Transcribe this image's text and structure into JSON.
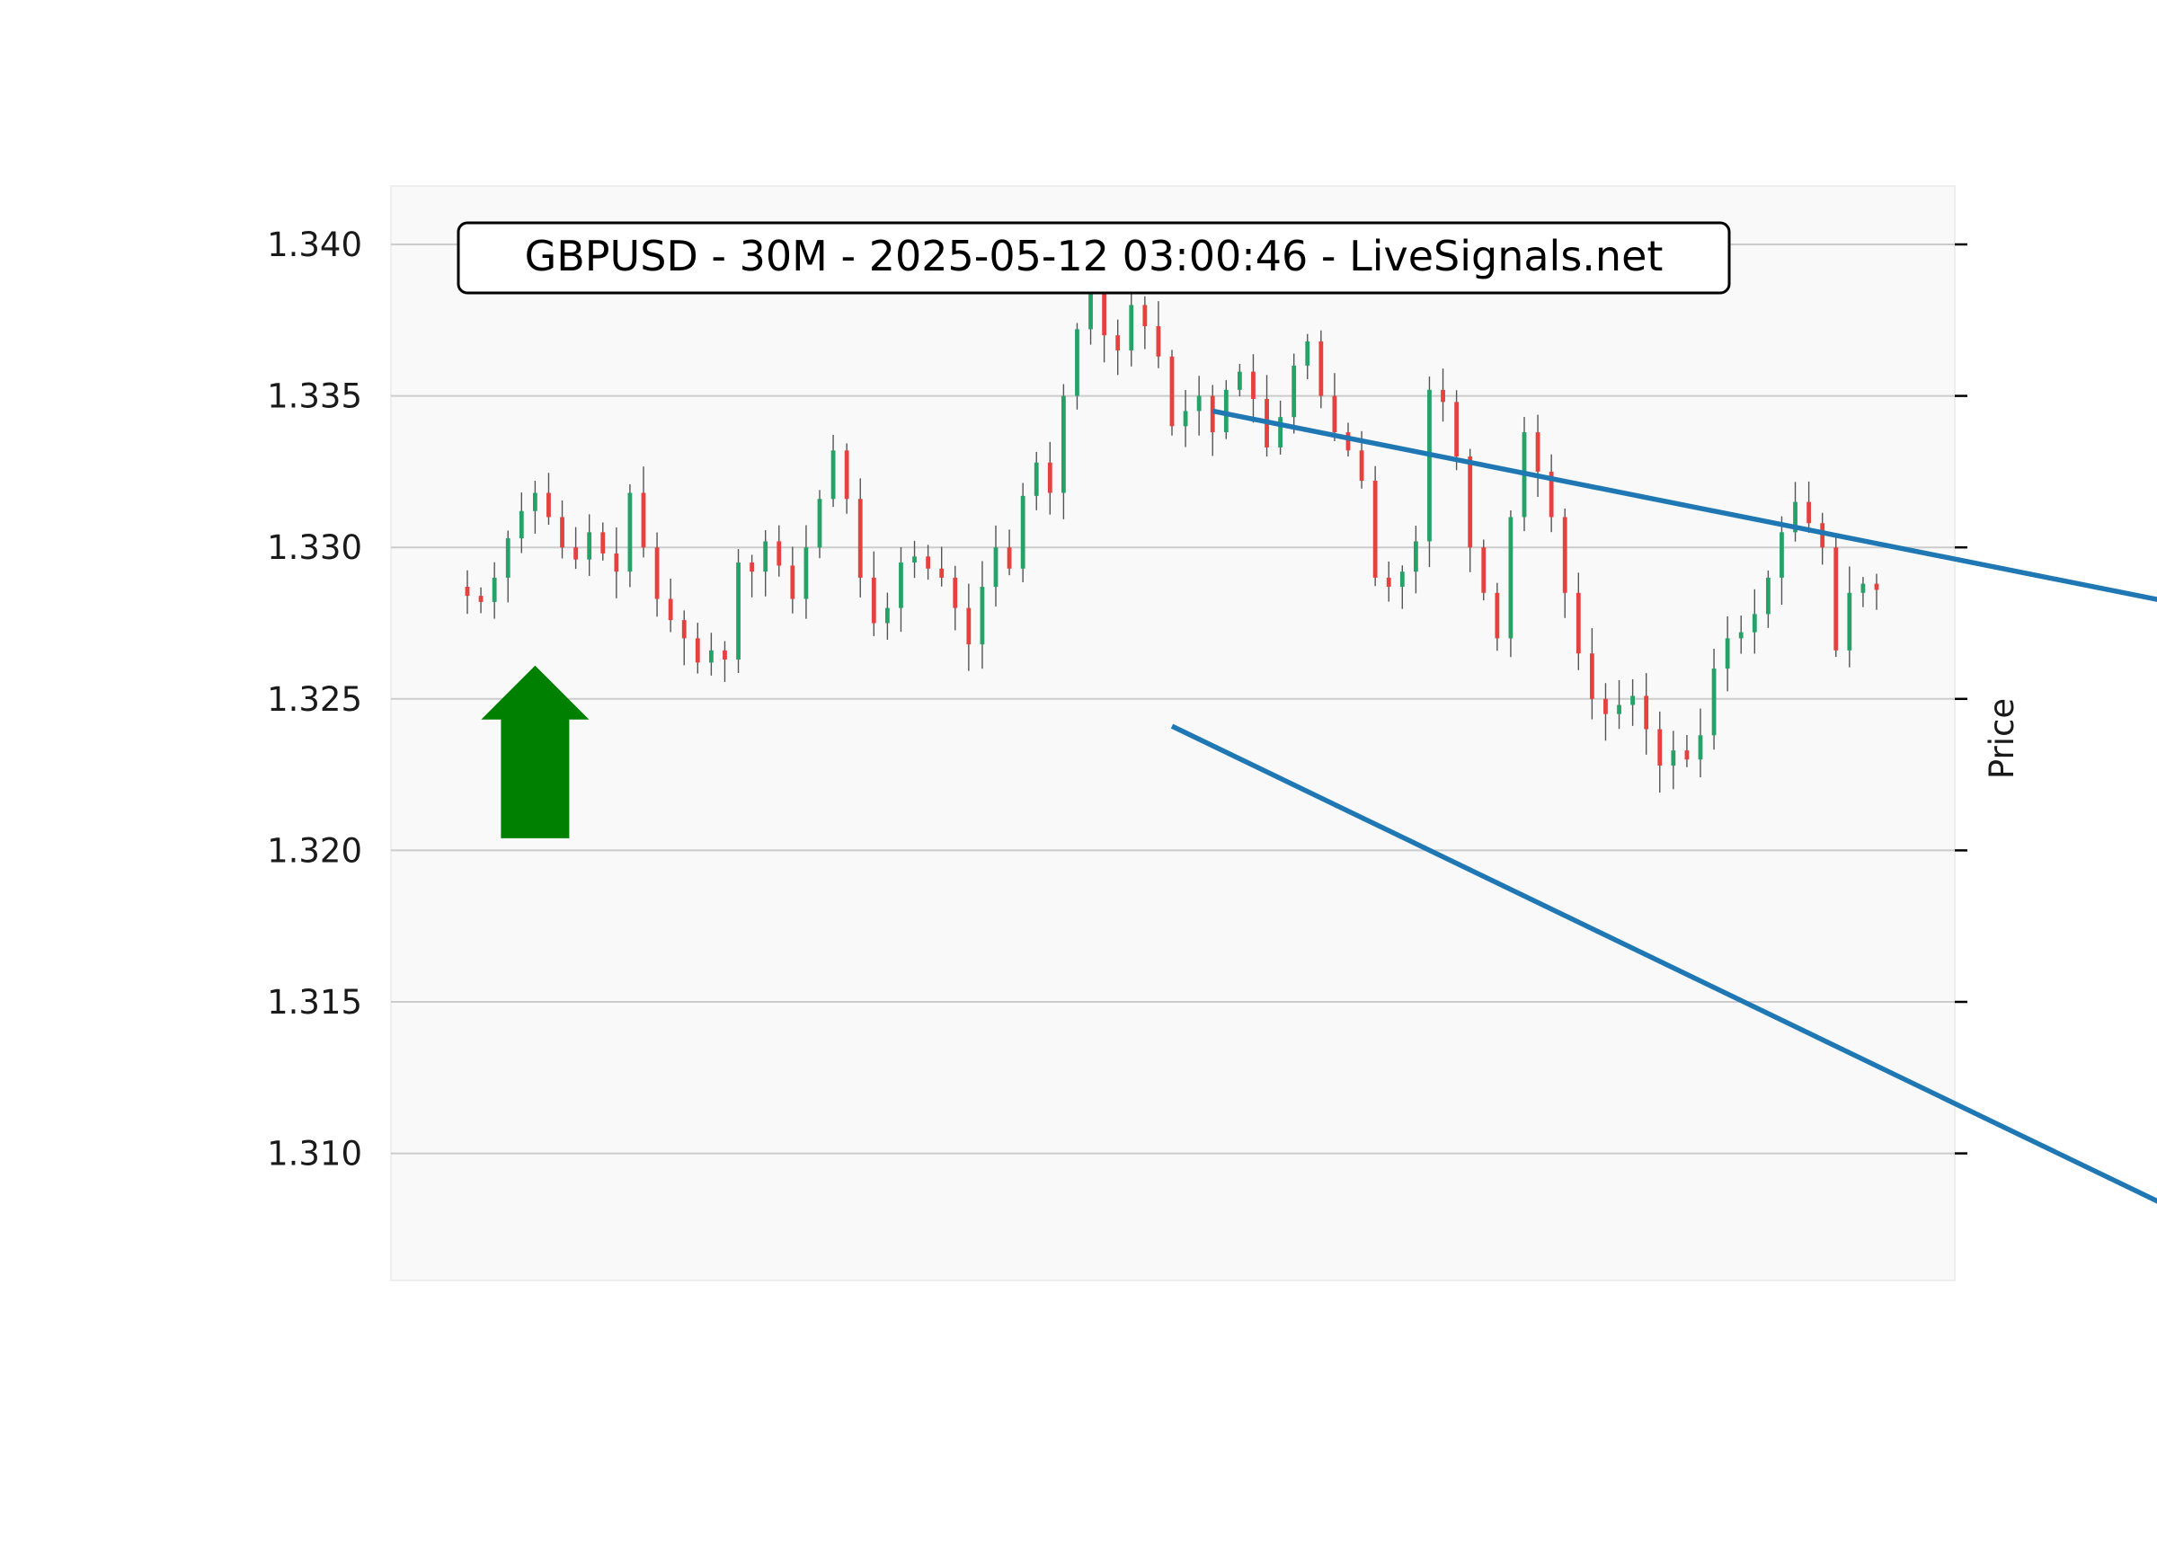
{
  "chart_data": {
    "type": "candlestick",
    "title": "GBPUSD - 30M - 2025-05-12 03:00:46 - LiveSignals.net",
    "xlabel": "",
    "ylabel": "Price",
    "ylim": [
      1.3055,
      1.3416
    ],
    "yticks": [
      "1.310",
      "1.315",
      "1.320",
      "1.325",
      "1.330",
      "1.335",
      "1.340"
    ],
    "grid": true,
    "y_axis_side": "right-ticks-left-labels",
    "colors": {
      "up": "#26a269",
      "down": "#e5413f",
      "wick": "#555555",
      "trendline": "#1f77b4",
      "arrow": "#008000",
      "panel": "#f9f9f9",
      "grid": "#cccccc"
    },
    "signal": {
      "type": "buy-arrow",
      "index": 5,
      "price_top": 1.3261,
      "price_base": 1.3204
    },
    "trendlines": [
      {
        "name": "",
        "start": {
          "index": 55,
          "price": 1.3345
        },
        "end": {
          "index": 129,
          "price": 1.3279
        }
      },
      {
        "name": "",
        "start": {
          "index": 52,
          "price": 1.3241
        },
        "end": {
          "index": 129,
          "price": 1.3075
        }
      }
    ],
    "close_path": [
      1.3284,
      1.3282,
      1.329,
      1.3303,
      1.3312,
      1.3318,
      1.331,
      1.33,
      1.3296,
      1.3305,
      1.3298,
      1.3292,
      1.3318,
      1.33,
      1.3283,
      1.3276,
      1.327,
      1.3262,
      1.3266,
      1.3263,
      1.3295,
      1.3292,
      1.3302,
      1.3294,
      1.3283,
      1.33,
      1.3316,
      1.3332,
      1.3316,
      1.329,
      1.3275,
      1.328,
      1.3295,
      1.3297,
      1.3293,
      1.329,
      1.328,
      1.3268,
      1.3287,
      1.33,
      1.3293,
      1.3317,
      1.3328,
      1.3318,
      1.335,
      1.3372,
      1.3385,
      1.337,
      1.3365,
      1.338,
      1.3373,
      1.3363,
      1.334,
      1.3345,
      1.335,
      1.3338,
      1.3352,
      1.3358,
      1.3349,
      1.3333,
      1.3343,
      1.336,
      1.3368,
      1.335,
      1.3338,
      1.3332,
      1.3322,
      1.329,
      1.3287,
      1.3292,
      1.3302,
      1.3352,
      1.3348,
      1.333,
      1.33,
      1.3285,
      1.327,
      1.331,
      1.3338,
      1.3325,
      1.331,
      1.3285,
      1.3265,
      1.325,
      1.3245,
      1.3248,
      1.3251,
      1.324,
      1.3228,
      1.3233,
      1.323,
      1.3238,
      1.326,
      1.327,
      1.3272,
      1.3278,
      1.329,
      1.3305,
      1.3315,
      1.3308,
      1.33,
      1.3266,
      1.3285,
      1.3288,
      1.3286
    ]
  }
}
